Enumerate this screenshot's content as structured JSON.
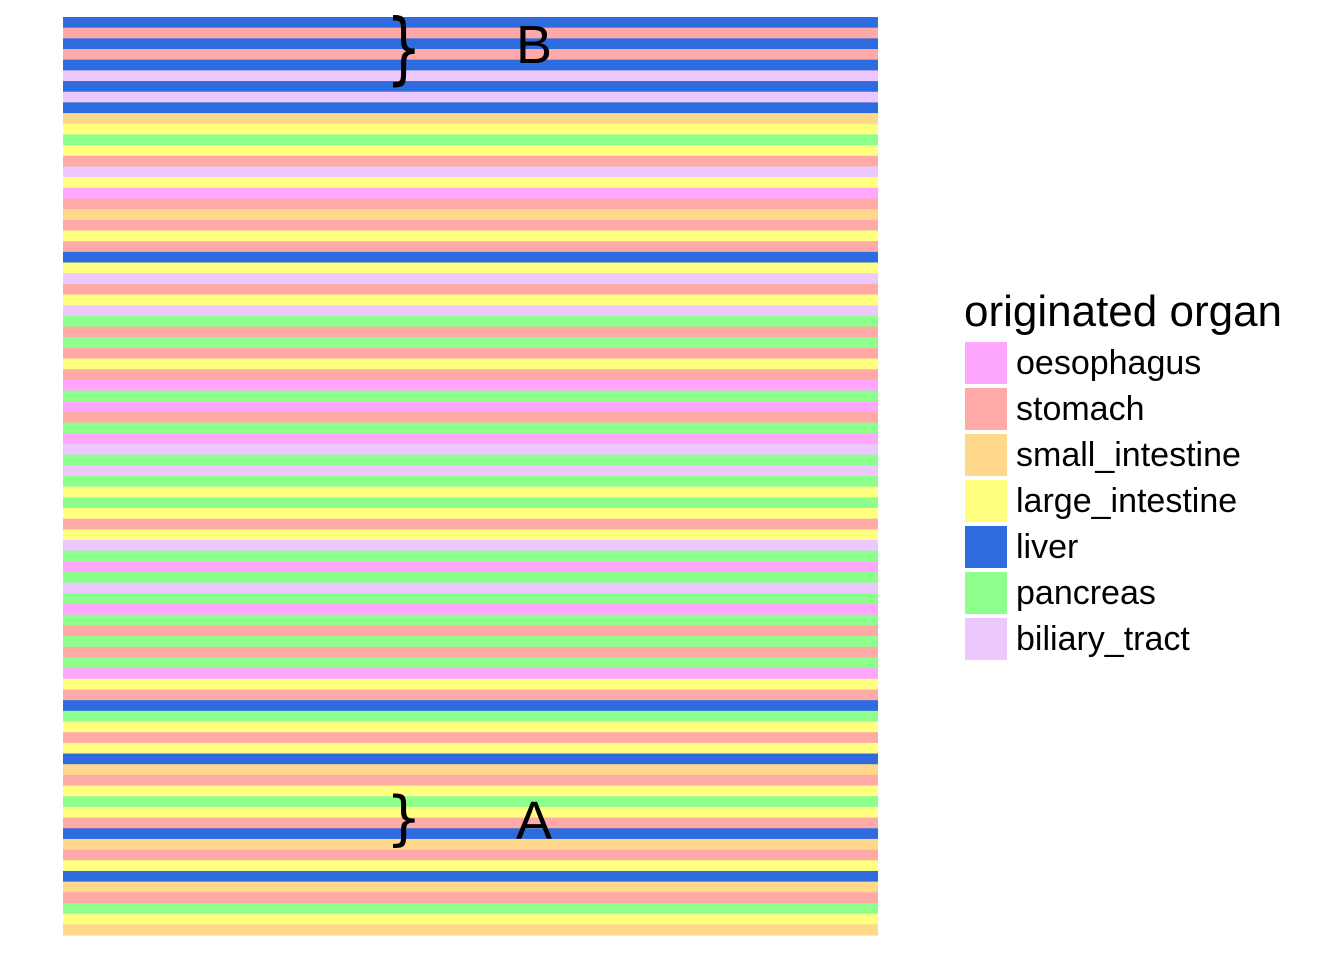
{
  "chart_data": {
    "type": "heatmap",
    "title": "",
    "legend": {
      "title": "originated organ",
      "position": "right",
      "entries": [
        {
          "name": "oesophagus",
          "color": "#FFA6FF"
        },
        {
          "name": "stomach",
          "color": "#FFAAA6"
        },
        {
          "name": "small_intestine",
          "color": "#FFD88C"
        },
        {
          "name": "large_intestine",
          "color": "#FFFF80"
        },
        {
          "name": "liver",
          "color": "#2E6BDE"
        },
        {
          "name": "pancreas",
          "color": "#8CFF8C"
        },
        {
          "name": "biliary_tract",
          "color": "#ECC8FF"
        }
      ]
    },
    "annotations": [
      {
        "symbol": "}",
        "text": "B",
        "near_row": 3
      },
      {
        "symbol": "}",
        "text": "A",
        "near_row": 87
      }
    ],
    "rows": [
      "liver",
      "stomach",
      "liver",
      "stomach",
      "liver",
      "biliary_tract",
      "liver",
      "biliary_tract",
      "liver",
      "small_intestine",
      "large_intestine",
      "pancreas",
      "large_intestine",
      "stomach",
      "biliary_tract",
      "large_intestine",
      "oesophagus",
      "stomach",
      "small_intestine",
      "stomach",
      "large_intestine",
      "stomach",
      "liver",
      "large_intestine",
      "biliary_tract",
      "stomach",
      "large_intestine",
      "biliary_tract",
      "pancreas",
      "stomach",
      "pancreas",
      "stomach",
      "large_intestine",
      "stomach",
      "oesophagus",
      "pancreas",
      "oesophagus",
      "stomach",
      "pancreas",
      "oesophagus",
      "biliary_tract",
      "pancreas",
      "biliary_tract",
      "pancreas",
      "large_intestine",
      "pancreas",
      "large_intestine",
      "stomach",
      "large_intestine",
      "biliary_tract",
      "pancreas",
      "oesophagus",
      "pancreas",
      "biliary_tract",
      "pancreas",
      "oesophagus",
      "pancreas",
      "stomach",
      "pancreas",
      "stomach",
      "pancreas",
      "oesophagus",
      "large_intestine",
      "stomach",
      "liver",
      "pancreas",
      "large_intestine",
      "stomach",
      "large_intestine",
      "liver",
      "small_intestine",
      "stomach",
      "large_intestine",
      "pancreas",
      "large_intestine",
      "stomach",
      "liver",
      "small_intestine",
      "stomach",
      "large_intestine",
      "liver",
      "small_intestine",
      "stomach",
      "pancreas",
      "large_intestine",
      "small_intestine"
    ]
  }
}
